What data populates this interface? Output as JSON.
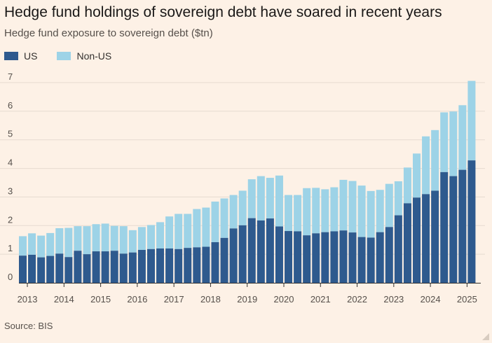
{
  "title": "Hedge fund holdings of sovereign debt have soared in recent years",
  "subtitle": "Hedge fund exposure to sovereign debt ($tn)",
  "source": "Source: BIS",
  "colors": {
    "us": "#2e5a8e",
    "non_us": "#9dd3e7",
    "grid": "#e6dbd0",
    "axis": "#56504b",
    "background": "#fdf1e6"
  },
  "legend": [
    {
      "name": "US",
      "color": "#2e5a8e"
    },
    {
      "name": "Non-US",
      "color": "#9dd3e7"
    }
  ],
  "chart_data": {
    "type": "bar",
    "stacked": true,
    "title": "Hedge fund holdings of sovereign debt have soared in recent years",
    "subtitle": "Hedge fund exposure to sovereign debt ($tn)",
    "ylim": [
      0,
      7
    ],
    "yticks": [
      0,
      1,
      2,
      3,
      4,
      5,
      6,
      7
    ],
    "xtick_labels": [
      "2013",
      "2014",
      "2015",
      "2016",
      "2017",
      "2018",
      "2019",
      "2020",
      "2021",
      "2022",
      "2023",
      "2024",
      "2025"
    ],
    "categories": [
      "2012Q4",
      "2013Q1",
      "2013Q2",
      "2013Q3",
      "2013Q4",
      "2014Q1",
      "2014Q2",
      "2014Q3",
      "2014Q4",
      "2015Q1",
      "2015Q2",
      "2015Q3",
      "2015Q4",
      "2016Q1",
      "2016Q2",
      "2016Q3",
      "2016Q4",
      "2017Q1",
      "2017Q2",
      "2017Q3",
      "2017Q4",
      "2018Q1",
      "2018Q2",
      "2018Q3",
      "2018Q4",
      "2019Q1",
      "2019Q2",
      "2019Q3",
      "2019Q4",
      "2020Q1",
      "2020Q2",
      "2020Q3",
      "2020Q4",
      "2021Q1",
      "2021Q2",
      "2021Q3",
      "2021Q4",
      "2022Q1",
      "2022Q2",
      "2022Q3",
      "2022Q4",
      "2023Q1",
      "2023Q2",
      "2023Q3",
      "2023Q4",
      "2024Q1",
      "2024Q2",
      "2024Q3",
      "2024Q4",
      "2025Q1"
    ],
    "series": [
      {
        "name": "US",
        "values": [
          0.95,
          0.98,
          0.89,
          0.94,
          1.02,
          0.9,
          1.12,
          1.0,
          1.1,
          1.1,
          1.12,
          1.02,
          1.06,
          1.15,
          1.18,
          1.2,
          1.2,
          1.18,
          1.22,
          1.24,
          1.26,
          1.42,
          1.57,
          1.9,
          2.01,
          2.26,
          2.18,
          2.25,
          1.97,
          1.81,
          1.8,
          1.66,
          1.73,
          1.77,
          1.8,
          1.83,
          1.76,
          1.6,
          1.58,
          1.77,
          1.95,
          2.36,
          2.78,
          2.98,
          3.1,
          3.22,
          3.87,
          3.73,
          3.95,
          4.28
        ]
      },
      {
        "name": "Non-US",
        "values": [
          0.68,
          0.75,
          0.76,
          0.8,
          0.89,
          1.02,
          0.86,
          0.98,
          0.95,
          0.97,
          0.87,
          0.96,
          0.78,
          0.8,
          0.84,
          0.92,
          1.12,
          1.23,
          1.19,
          1.34,
          1.37,
          1.42,
          1.38,
          1.17,
          1.21,
          1.36,
          1.55,
          1.42,
          1.78,
          1.26,
          1.27,
          1.65,
          1.59,
          1.5,
          1.54,
          1.77,
          1.8,
          1.8,
          1.63,
          1.48,
          1.51,
          1.19,
          1.25,
          1.54,
          2.02,
          2.12,
          2.09,
          2.26,
          2.26,
          2.78
        ]
      }
    ]
  }
}
